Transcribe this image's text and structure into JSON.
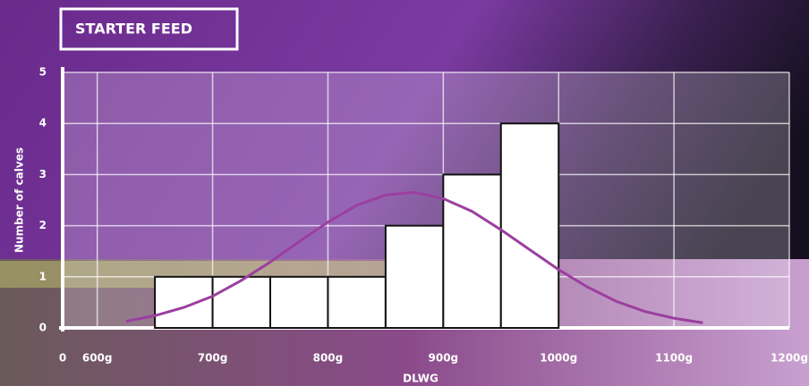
{
  "chart_data": {
    "type": "histogram",
    "title": "STARTER FEED",
    "x_label": "DLWG",
    "y_label": "Number of calves",
    "x_origin_label": "0",
    "bins": [
      650,
      700,
      750,
      800,
      850,
      900,
      950,
      1000
    ],
    "counts": [
      1,
      1,
      1,
      1,
      2,
      3,
      4
    ],
    "bar_color": "#ffffff",
    "curve": {
      "color": "#9b3fa0",
      "x": [
        625,
        650,
        675,
        700,
        725,
        750,
        775,
        800,
        825,
        850,
        875,
        900,
        925,
        950,
        975,
        1000,
        1025,
        1050,
        1075,
        1100,
        1125
      ],
      "y": [
        0.13,
        0.24,
        0.4,
        0.62,
        0.93,
        1.29,
        1.69,
        2.07,
        2.4,
        2.6,
        2.65,
        2.53,
        2.28,
        1.92,
        1.53,
        1.14,
        0.8,
        0.52,
        0.32,
        0.19,
        0.1
      ]
    },
    "xlim": [
      570,
      1200
    ],
    "xticks": [
      {
        "value": 600,
        "label": "600g"
      },
      {
        "value": 700,
        "label": "700g"
      },
      {
        "value": 800,
        "label": "800g"
      },
      {
        "value": 900,
        "label": "900g"
      },
      {
        "value": 1000,
        "label": "1000g"
      },
      {
        "value": 1100,
        "label": "1100g"
      },
      {
        "value": 1200,
        "label": "1200g"
      }
    ],
    "ylim": [
      0,
      5
    ],
    "yticks": [
      0,
      1,
      2,
      3,
      4,
      5
    ],
    "grid": true
  }
}
